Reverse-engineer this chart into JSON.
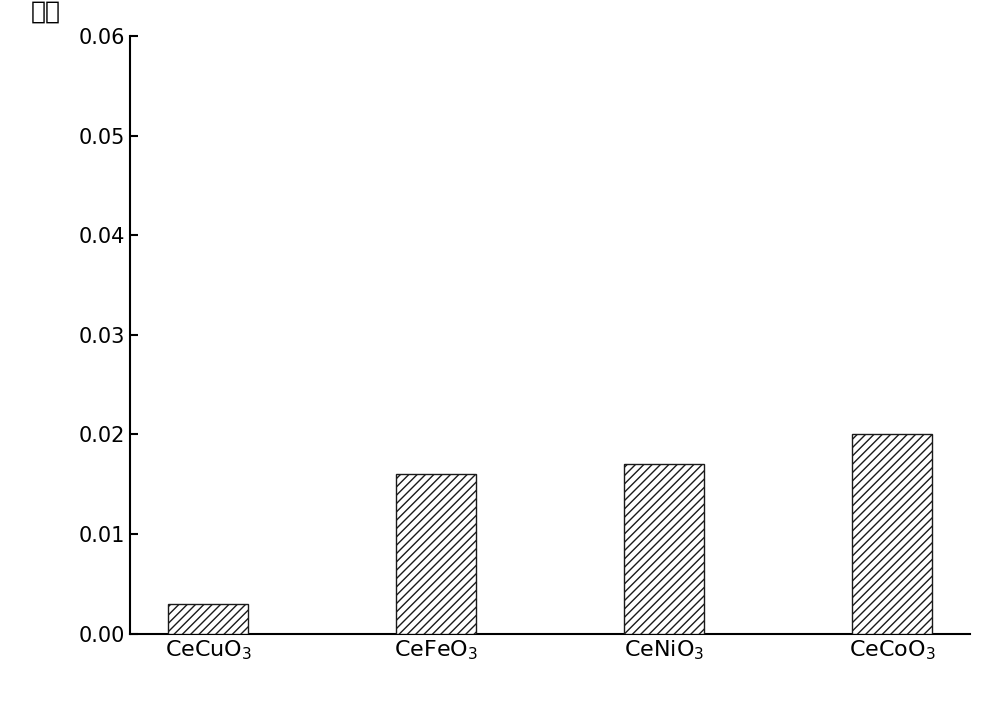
{
  "categories": [
    "CeCuO$_3$",
    "CeFeO$_3$",
    "CeNiO$_3$",
    "CeCoO$_3$"
  ],
  "values": [
    0.003,
    0.016,
    0.017,
    0.02
  ],
  "bar_color": "white",
  "bar_edgecolor": "#1a1a1a",
  "hatch_pattern": "////",
  "ylabel": "产率",
  "ylim": [
    0.0,
    0.06
  ],
  "yticks": [
    0.0,
    0.01,
    0.02,
    0.03,
    0.04,
    0.05,
    0.06
  ],
  "background_color": "#ffffff",
  "bar_width": 0.35,
  "label_fontsize": 16,
  "tick_fontsize": 15,
  "ylabel_fontsize": 18
}
